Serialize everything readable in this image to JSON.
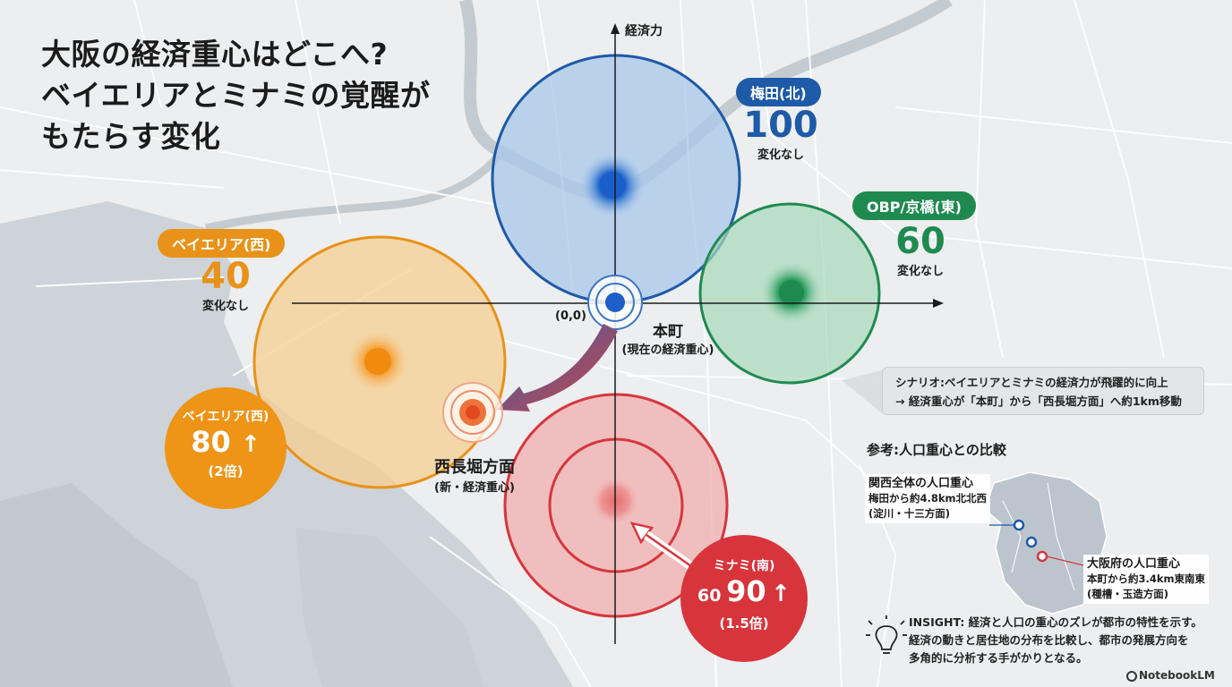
{
  "title_lines": [
    "大阪の経済重心はどこへ?",
    "ベイエリアとミナミの覚醒が",
    "もたらす変化"
  ],
  "axis": {
    "y_label": "経済力",
    "origin": "(0,0)"
  },
  "center": {
    "name": "本町",
    "sub": "(現在の経済重心)"
  },
  "new_center": {
    "name": "西長堀方面",
    "sub": "(新・経済重心)"
  },
  "nodes": {
    "umeda": {
      "label": "梅田(北)",
      "value": "100",
      "note": "変化なし",
      "color": "#1d5aa8"
    },
    "obp": {
      "label": "OBP/京橋(東)",
      "value": "60",
      "note": "変化なし",
      "color": "#1f8a50"
    },
    "bay": {
      "label": "ベイエリア(西)",
      "value": "40",
      "note": "変化なし",
      "color": "#e8921a"
    }
  },
  "callouts": {
    "bay": {
      "label": "ベイエリア(西)",
      "old_value": "",
      "value": "80",
      "arrow": "↑",
      "ratio": "(2倍)",
      "color": "#ee9417"
    },
    "minami": {
      "label": "ミナミ(南)",
      "old_value": "60",
      "value": "90",
      "arrow": "↑",
      "ratio": "(1.5倍)",
      "color": "#d8343b"
    }
  },
  "scenario_lines": [
    "シナリオ:ベイエリアとミナミの経済力が飛躍的に向上",
    "→ 経済重心が「本町」から「西長堀方面」へ約1km移動"
  ],
  "reference": {
    "title": "参考:人口重心との比較",
    "kansai_title": "関西全体の人口重心",
    "kansai_desc": [
      "梅田から約4.8km北北西",
      "(淀川・十三方面)"
    ],
    "osaka_title": "大阪府の人口重心",
    "osaka_desc": [
      "本町から約3.4km東南東",
      "(種槽・玉造方面)"
    ]
  },
  "insight_lines": [
    "INSIGHT: 経済と人口の重心のズレが都市の特性を示す。",
    "経済の動きと居住地の分布を比較し、都市の発展方向を",
    "多角的に分析する手がかりとなる。"
  ],
  "footer": "NotebookLM"
}
